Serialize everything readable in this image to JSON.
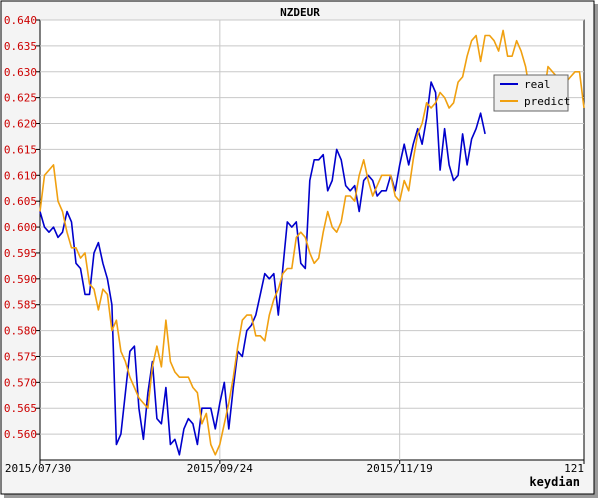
{
  "chart_data": {
    "type": "line",
    "title": "NZDEUR",
    "xlabel": "keydian",
    "ylabel": "",
    "x_range": [
      0,
      121
    ],
    "x_tick_positions": [
      0,
      40,
      80,
      121
    ],
    "x_tick_labels": [
      "2015/07/30",
      "2015/09/24",
      "2015/11/19",
      "121"
    ],
    "ylim": [
      0.555,
      0.64
    ],
    "y_ticks": [
      "0.560",
      "0.565",
      "0.570",
      "0.575",
      "0.580",
      "0.585",
      "0.590",
      "0.595",
      "0.600",
      "0.605",
      "0.610",
      "0.615",
      "0.620",
      "0.625",
      "0.630",
      "0.635",
      "0.640"
    ],
    "grid": true,
    "legend_position": "top-right",
    "colors": {
      "real": "#0000cc",
      "predict": "#f0a010",
      "ytick": "#cc0000",
      "grid": "#c8c8c8"
    },
    "series": [
      {
        "name": "real",
        "x": [
          0,
          1,
          2,
          3,
          4,
          5,
          6,
          7,
          8,
          9,
          10,
          11,
          12,
          13,
          14,
          15,
          16,
          17,
          18,
          19,
          20,
          21,
          22,
          23,
          24,
          25,
          26,
          27,
          28,
          29,
          30,
          31,
          32,
          33,
          34,
          35,
          36,
          37,
          38,
          39,
          40,
          41,
          42,
          43,
          44,
          45,
          46,
          47,
          48,
          49,
          50,
          51,
          52,
          53,
          54,
          55,
          56,
          57,
          58,
          59,
          60,
          61,
          62,
          63,
          64,
          65,
          66,
          67,
          68,
          69,
          70,
          71,
          72,
          73,
          74,
          75,
          76,
          77,
          78,
          79,
          80,
          81,
          82,
          83,
          84,
          85,
          86,
          87,
          88,
          89,
          90,
          91,
          92,
          93,
          94,
          95,
          96,
          97,
          98,
          99,
          100,
          101,
          102,
          103,
          104,
          105,
          106
        ],
        "values": [
          0.603,
          0.6,
          0.599,
          0.6,
          0.598,
          0.599,
          0.603,
          0.601,
          0.593,
          0.592,
          0.587,
          0.587,
          0.595,
          0.597,
          0.593,
          0.59,
          0.585,
          0.558,
          0.56,
          0.568,
          0.576,
          0.577,
          0.565,
          0.559,
          0.568,
          0.574,
          0.563,
          0.562,
          0.569,
          0.558,
          0.559,
          0.556,
          0.561,
          0.563,
          0.562,
          0.558,
          0.565,
          0.565,
          0.565,
          0.561,
          0.566,
          0.57,
          0.561,
          0.569,
          0.576,
          0.575,
          0.58,
          0.581,
          0.583,
          0.587,
          0.591,
          0.59,
          0.591,
          0.583,
          0.592,
          0.601,
          0.6,
          0.601,
          0.593,
          0.592,
          0.609,
          0.613,
          0.613,
          0.614,
          0.607,
          0.609,
          0.615,
          0.613,
          0.608,
          0.607,
          0.608,
          0.603,
          0.609,
          0.61,
          0.609,
          0.606,
          0.607,
          0.607,
          0.61,
          0.607,
          0.612,
          0.616,
          0.612,
          0.616,
          0.619,
          0.616,
          0.621,
          0.628,
          0.626,
          0.611,
          0.619,
          0.612,
          0.609,
          0.61,
          0.618,
          0.612,
          0.617,
          0.619,
          0.622,
          0.618,
          null,
          null,
          null,
          null,
          null,
          null,
          null
        ]
      },
      {
        "name": "predict",
        "x": [
          0,
          1,
          2,
          3,
          4,
          5,
          6,
          7,
          8,
          9,
          10,
          11,
          12,
          13,
          14,
          15,
          16,
          17,
          18,
          19,
          20,
          21,
          22,
          23,
          24,
          25,
          26,
          27,
          28,
          29,
          30,
          31,
          32,
          33,
          34,
          35,
          36,
          37,
          38,
          39,
          40,
          41,
          42,
          43,
          44,
          45,
          46,
          47,
          48,
          49,
          50,
          51,
          52,
          53,
          54,
          55,
          56,
          57,
          58,
          59,
          60,
          61,
          62,
          63,
          64,
          65,
          66,
          67,
          68,
          69,
          70,
          71,
          72,
          73,
          74,
          75,
          76,
          77,
          78,
          79,
          80,
          81,
          82,
          83,
          84,
          85,
          86,
          87,
          88,
          89,
          90,
          91,
          92,
          93,
          94,
          95,
          96,
          97,
          98,
          99,
          100,
          101,
          102,
          103,
          104,
          105,
          106,
          107,
          108,
          109,
          110,
          111,
          112,
          113,
          114,
          115,
          116,
          117,
          118,
          119,
          120,
          121
        ],
        "values": [
          0.603,
          0.61,
          0.611,
          0.612,
          0.605,
          0.603,
          0.599,
          0.596,
          0.596,
          0.594,
          0.595,
          0.589,
          0.588,
          0.584,
          0.588,
          0.587,
          0.58,
          0.582,
          0.576,
          0.574,
          0.571,
          0.569,
          0.567,
          0.566,
          0.565,
          0.573,
          0.577,
          0.573,
          0.582,
          0.574,
          0.572,
          0.571,
          0.571,
          0.571,
          0.569,
          0.568,
          0.562,
          0.564,
          0.558,
          0.556,
          0.558,
          0.562,
          0.566,
          0.571,
          0.577,
          0.582,
          0.583,
          0.583,
          0.579,
          0.579,
          0.578,
          0.583,
          0.586,
          0.588,
          0.591,
          0.592,
          0.592,
          0.598,
          0.599,
          0.598,
          0.595,
          0.593,
          0.594,
          0.599,
          0.603,
          0.6,
          0.599,
          0.601,
          0.606,
          0.606,
          0.605,
          0.61,
          0.613,
          0.609,
          0.606,
          0.608,
          0.61,
          0.61,
          0.61,
          0.606,
          0.605,
          0.609,
          0.607,
          0.613,
          0.618,
          0.62,
          0.624,
          0.623,
          0.624,
          0.626,
          0.625,
          0.623,
          0.624,
          0.628,
          0.629,
          0.633,
          0.636,
          0.637,
          0.632,
          0.637,
          0.637,
          0.636,
          0.634,
          0.638,
          0.633,
          0.633,
          0.636,
          0.634,
          0.631,
          0.626,
          0.627,
          0.625,
          0.625,
          0.631,
          0.63,
          0.629,
          0.627,
          0.628,
          0.629,
          0.63,
          0.63,
          0.623
        ]
      }
    ]
  }
}
